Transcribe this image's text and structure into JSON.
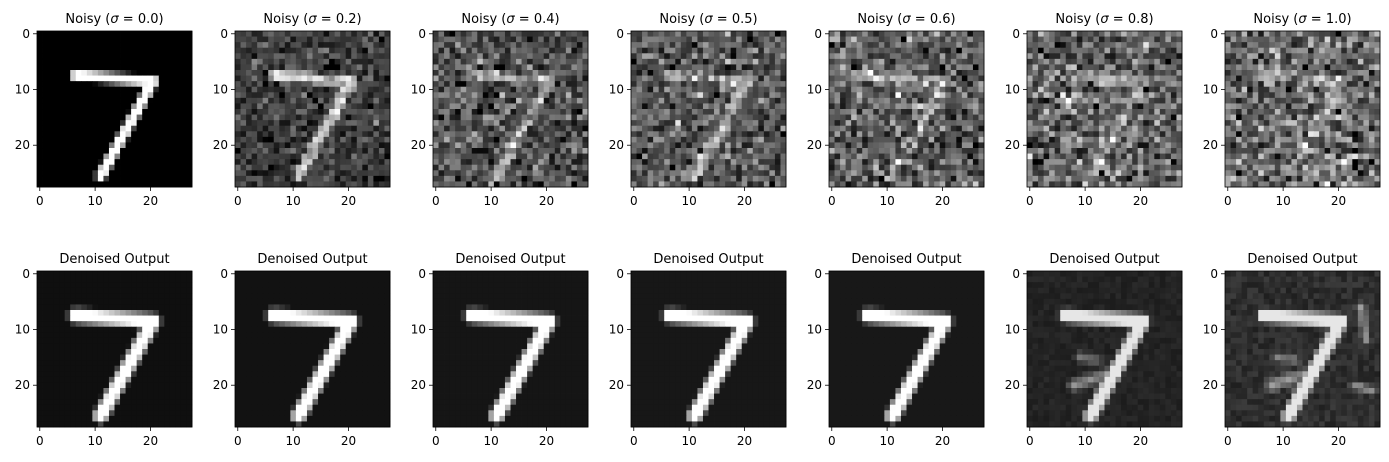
{
  "figure": {
    "rows": 2,
    "cols": 7
  },
  "chart_data": [
    {
      "type": "heatmap",
      "title": "Noisy (σ = 0.0)",
      "title_prefix": "Noisy (",
      "title_sigma": "σ",
      "title_eq": " = ",
      "title_value": "0.0",
      "title_suffix": ")",
      "sigma": 0.0,
      "variant": "noisy",
      "xlim": [
        -0.5,
        27.5
      ],
      "ylim": [
        27.5,
        -0.5
      ],
      "xticks": [
        0,
        10,
        20
      ],
      "yticks": [
        0,
        10,
        20
      ],
      "colormap": "gray",
      "grid": false,
      "image_shape": [
        28,
        28
      ]
    },
    {
      "type": "heatmap",
      "title": "Noisy (σ = 0.2)",
      "title_prefix": "Noisy (",
      "title_sigma": "σ",
      "title_eq": " = ",
      "title_value": "0.2",
      "title_suffix": ")",
      "sigma": 0.2,
      "variant": "noisy",
      "xlim": [
        -0.5,
        27.5
      ],
      "ylim": [
        27.5,
        -0.5
      ],
      "xticks": [
        0,
        10,
        20
      ],
      "yticks": [
        0,
        10,
        20
      ],
      "colormap": "gray",
      "grid": false,
      "image_shape": [
        28,
        28
      ]
    },
    {
      "type": "heatmap",
      "title": "Noisy (σ = 0.4)",
      "title_prefix": "Noisy (",
      "title_sigma": "σ",
      "title_eq": " = ",
      "title_value": "0.4",
      "title_suffix": ")",
      "sigma": 0.4,
      "variant": "noisy",
      "xlim": [
        -0.5,
        27.5
      ],
      "ylim": [
        27.5,
        -0.5
      ],
      "xticks": [
        0,
        10,
        20
      ],
      "yticks": [
        0,
        10,
        20
      ],
      "colormap": "gray",
      "grid": false,
      "image_shape": [
        28,
        28
      ]
    },
    {
      "type": "heatmap",
      "title": "Noisy (σ = 0.5)",
      "title_prefix": "Noisy (",
      "title_sigma": "σ",
      "title_eq": " = ",
      "title_value": "0.5",
      "title_suffix": ")",
      "sigma": 0.5,
      "variant": "noisy",
      "xlim": [
        -0.5,
        27.5
      ],
      "ylim": [
        27.5,
        -0.5
      ],
      "xticks": [
        0,
        10,
        20
      ],
      "yticks": [
        0,
        10,
        20
      ],
      "colormap": "gray",
      "grid": false,
      "image_shape": [
        28,
        28
      ]
    },
    {
      "type": "heatmap",
      "title": "Noisy (σ = 0.6)",
      "title_prefix": "Noisy (",
      "title_sigma": "σ",
      "title_eq": " = ",
      "title_value": "0.6",
      "title_suffix": ")",
      "sigma": 0.6,
      "variant": "noisy",
      "xlim": [
        -0.5,
        27.5
      ],
      "ylim": [
        27.5,
        -0.5
      ],
      "xticks": [
        0,
        10,
        20
      ],
      "yticks": [
        0,
        10,
        20
      ],
      "colormap": "gray",
      "grid": false,
      "image_shape": [
        28,
        28
      ]
    },
    {
      "type": "heatmap",
      "title": "Noisy (σ = 0.8)",
      "title_prefix": "Noisy (",
      "title_sigma": "σ",
      "title_eq": " = ",
      "title_value": "0.8",
      "title_suffix": ")",
      "sigma": 0.8,
      "variant": "noisy",
      "xlim": [
        -0.5,
        27.5
      ],
      "ylim": [
        27.5,
        -0.5
      ],
      "xticks": [
        0,
        10,
        20
      ],
      "yticks": [
        0,
        10,
        20
      ],
      "colormap": "gray",
      "grid": false,
      "image_shape": [
        28,
        28
      ]
    },
    {
      "type": "heatmap",
      "title": "Noisy (σ = 1.0)",
      "title_prefix": "Noisy (",
      "title_sigma": "σ",
      "title_eq": " = ",
      "title_value": "1.0",
      "title_suffix": ")",
      "sigma": 1.0,
      "variant": "noisy",
      "xlim": [
        -0.5,
        27.5
      ],
      "ylim": [
        27.5,
        -0.5
      ],
      "xticks": [
        0,
        10,
        20
      ],
      "yticks": [
        0,
        10,
        20
      ],
      "colormap": "gray",
      "grid": false,
      "image_shape": [
        28,
        28
      ]
    },
    {
      "type": "heatmap",
      "title": "Denoised Output",
      "sigma": 0.0,
      "variant": "denoised",
      "xlim": [
        -0.5,
        27.5
      ],
      "ylim": [
        27.5,
        -0.5
      ],
      "xticks": [
        0,
        10,
        20
      ],
      "yticks": [
        0,
        10,
        20
      ],
      "colormap": "gray",
      "grid": false,
      "image_shape": [
        28,
        28
      ]
    },
    {
      "type": "heatmap",
      "title": "Denoised Output",
      "sigma": 0.2,
      "variant": "denoised",
      "xlim": [
        -0.5,
        27.5
      ],
      "ylim": [
        27.5,
        -0.5
      ],
      "xticks": [
        0,
        10,
        20
      ],
      "yticks": [
        0,
        10,
        20
      ],
      "colormap": "gray",
      "grid": false,
      "image_shape": [
        28,
        28
      ]
    },
    {
      "type": "heatmap",
      "title": "Denoised Output",
      "sigma": 0.4,
      "variant": "denoised",
      "xlim": [
        -0.5,
        27.5
      ],
      "ylim": [
        27.5,
        -0.5
      ],
      "xticks": [
        0,
        10,
        20
      ],
      "yticks": [
        0,
        10,
        20
      ],
      "colormap": "gray",
      "grid": false,
      "image_shape": [
        28,
        28
      ]
    },
    {
      "type": "heatmap",
      "title": "Denoised Output",
      "sigma": 0.5,
      "variant": "denoised",
      "xlim": [
        -0.5,
        27.5
      ],
      "ylim": [
        27.5,
        -0.5
      ],
      "xticks": [
        0,
        10,
        20
      ],
      "yticks": [
        0,
        10,
        20
      ],
      "colormap": "gray",
      "grid": false,
      "image_shape": [
        28,
        28
      ]
    },
    {
      "type": "heatmap",
      "title": "Denoised Output",
      "sigma": 0.6,
      "variant": "denoised",
      "xlim": [
        -0.5,
        27.5
      ],
      "ylim": [
        27.5,
        -0.5
      ],
      "xticks": [
        0,
        10,
        20
      ],
      "yticks": [
        0,
        10,
        20
      ],
      "colormap": "gray",
      "grid": false,
      "image_shape": [
        28,
        28
      ]
    },
    {
      "type": "heatmap",
      "title": "Denoised Output",
      "sigma": 0.8,
      "variant": "denoised",
      "xlim": [
        -0.5,
        27.5
      ],
      "ylim": [
        27.5,
        -0.5
      ],
      "xticks": [
        0,
        10,
        20
      ],
      "yticks": [
        0,
        10,
        20
      ],
      "colormap": "gray",
      "grid": false,
      "image_shape": [
        28,
        28
      ]
    },
    {
      "type": "heatmap",
      "title": "Denoised Output",
      "sigma": 1.0,
      "variant": "denoised",
      "xlim": [
        -0.5,
        27.5
      ],
      "ylim": [
        27.5,
        -0.5
      ],
      "xticks": [
        0,
        10,
        20
      ],
      "yticks": [
        0,
        10,
        20
      ],
      "colormap": "gray",
      "grid": false,
      "image_shape": [
        28,
        28
      ]
    }
  ]
}
